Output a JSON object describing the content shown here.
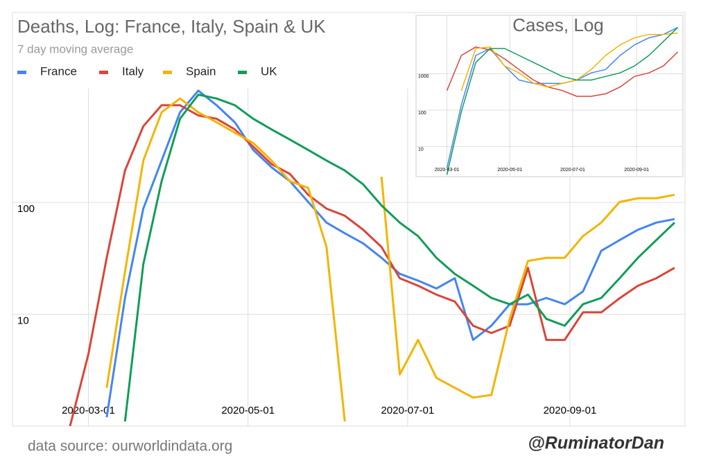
{
  "chart_data": [
    {
      "type": "line",
      "title": "Deaths, Log: France, Italy, Spain & UK",
      "subtitle": "7 day moving average",
      "log_scale": true,
      "grid": true,
      "legend": "top-left",
      "xlim": [
        "2020-02-01",
        "2020-10-15"
      ],
      "xticks": [
        "2020-03-01",
        "2020-05-01",
        "2020-07-01",
        "2020-09-01"
      ],
      "ylim": [
        1,
        1200
      ],
      "yticks": [
        10,
        100
      ],
      "x": [
        "2020-02-23",
        "2020-03-01",
        "2020-03-08",
        "2020-03-15",
        "2020-03-22",
        "2020-03-29",
        "2020-04-05",
        "2020-04-12",
        "2020-04-19",
        "2020-04-26",
        "2020-05-03",
        "2020-05-10",
        "2020-05-17",
        "2020-05-24",
        "2020-05-31",
        "2020-06-07",
        "2020-06-14",
        "2020-06-21",
        "2020-06-28",
        "2020-07-05",
        "2020-07-12",
        "2020-07-19",
        "2020-07-26",
        "2020-08-02",
        "2020-08-09",
        "2020-08-16",
        "2020-08-23",
        "2020-08-30",
        "2020-09-06",
        "2020-09-13",
        "2020-09-20",
        "2020-09-27",
        "2020-10-04",
        "2020-10-11"
      ],
      "series": [
        {
          "name": "France",
          "color": "#4285f4",
          "values": [
            null,
            null,
            1.2,
            14,
            88,
            237,
            640,
            1000,
            740,
            520,
            295,
            206,
            155,
            101,
            66,
            53,
            43,
            32,
            23,
            20,
            17,
            21,
            5.9,
            7.9,
            12.3,
            12.3,
            14,
            12.3,
            16,
            37,
            46,
            57,
            66,
            71
          ]
        },
        {
          "name": "Italy",
          "color": "#db4437",
          "values": [
            1,
            4.4,
            32,
            193,
            480,
            740,
            740,
            600,
            560,
            450,
            315,
            220,
            180,
            117,
            88,
            76,
            57,
            40,
            21,
            18,
            15,
            13,
            7.9,
            6.8,
            7.9,
            26,
            5.9,
            5.9,
            10.4,
            10.4,
            13.9,
            18,
            21,
            26
          ]
        },
        {
          "name": "Spain",
          "color": "#f4b400",
          "values": [
            null,
            null,
            2.2,
            24,
            237,
            640,
            850,
            640,
            520,
            420,
            340,
            237,
            155,
            135,
            40,
            1.1,
            null,
            170,
            2.9,
            5.9,
            2.7,
            2.2,
            1.8,
            1.9,
            9.1,
            30,
            32,
            32,
            50,
            66,
            101,
            109,
            109,
            117
          ]
        },
        {
          "name": "UK",
          "color": "#0f9d58",
          "values": [
            null,
            null,
            null,
            1.1,
            28,
            155,
            560,
            920,
            850,
            740,
            560,
            450,
            365,
            295,
            237,
            193,
            145,
            94,
            66,
            50,
            32,
            23,
            18,
            14,
            12.3,
            15,
            9.1,
            7.9,
            12.3,
            14,
            21,
            32,
            46,
            66
          ]
        }
      ]
    },
    {
      "type": "line",
      "title": "Cases, Log",
      "log_scale": true,
      "grid": true,
      "xlim": [
        "2020-01-31",
        "2020-10-16"
      ],
      "xticks": [
        "2020-03-01",
        "2020-05-01",
        "2020-07-01",
        "2020-09-01"
      ],
      "ylim": [
        1.5,
        40000
      ],
      "yticks": [
        10,
        100,
        1000
      ],
      "x": [
        "2020-03-01",
        "2020-03-15",
        "2020-03-29",
        "2020-04-12",
        "2020-04-26",
        "2020-05-10",
        "2020-05-24",
        "2020-06-07",
        "2020-06-21",
        "2020-07-05",
        "2020-07-19",
        "2020-08-02",
        "2020-08-16",
        "2020-08-30",
        "2020-09-13",
        "2020-09-27",
        "2020-10-11"
      ],
      "series": [
        {
          "color": "#4285f4",
          "values": [
            2.6,
            140,
            3160,
            4900,
            1630,
            670,
            540,
            540,
            540,
            670,
            1050,
            1300,
            3160,
            6150,
            9600,
            11900,
            18600
          ]
        },
        {
          "color": "#db4437",
          "values": [
            345,
            3160,
            5400,
            4500,
            2540,
            1300,
            670,
            430,
            345,
            240,
            240,
            280,
            430,
            840,
            1050,
            1630,
            3950
          ]
        },
        {
          "color": "#f4b400",
          "values": [
            null,
            345,
            4900,
            5400,
            1630,
            1050,
            540,
            430,
            540,
            670,
            1300,
            3160,
            6150,
            9600,
            11900,
            11900,
            13000
          ]
        },
        {
          "color": "#0f9d58",
          "values": [
            1.7,
            91,
            2030,
            4900,
            4900,
            3160,
            2030,
            1300,
            840,
            670,
            670,
            840,
            1050,
            1630,
            3160,
            7650,
            18600
          ]
        }
      ]
    }
  ],
  "footer": {
    "source": "data source: ourworldindata.org",
    "handle": "@RuminatorDan"
  }
}
